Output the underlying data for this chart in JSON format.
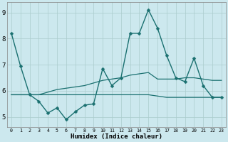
{
  "xlabel": "Humidex (Indice chaleur)",
  "bg_color": "#cce8ee",
  "grid_color": "#aacccc",
  "line_color": "#1a7070",
  "xlim_min": -0.5,
  "xlim_max": 23.5,
  "ylim_min": 4.6,
  "ylim_max": 9.4,
  "yticks": [
    5,
    6,
    7,
    8,
    9
  ],
  "xticks": [
    0,
    1,
    2,
    3,
    4,
    5,
    6,
    7,
    8,
    9,
    10,
    11,
    12,
    13,
    14,
    15,
    16,
    17,
    18,
    19,
    20,
    21,
    22,
    23
  ],
  "series": [
    {
      "x": [
        0,
        1,
        2,
        3,
        4,
        5,
        6,
        7,
        8,
        9,
        10,
        11,
        12,
        13,
        14,
        15,
        16,
        17,
        18,
        19,
        20,
        21,
        22,
        23
      ],
      "y": [
        8.2,
        6.95,
        5.85,
        5.6,
        5.15,
        5.35,
        4.9,
        5.2,
        5.45,
        5.5,
        6.85,
        6.2,
        6.5,
        8.2,
        8.2,
        9.1,
        8.4,
        7.35,
        6.5,
        6.35,
        7.25,
        6.2,
        5.75,
        5.75
      ],
      "marker": true,
      "markersize": 2.5,
      "linewidth": 1.0
    },
    {
      "x": [
        0,
        1,
        2,
        3,
        4,
        5,
        6,
        7,
        8,
        9,
        10,
        11,
        12,
        13,
        14,
        15,
        16,
        17,
        18,
        19,
        20,
        21,
        22,
        23
      ],
      "y": [
        5.85,
        5.85,
        5.85,
        5.85,
        5.95,
        6.05,
        6.1,
        6.15,
        6.2,
        6.3,
        6.4,
        6.45,
        6.5,
        6.6,
        6.65,
        6.7,
        6.45,
        6.45,
        6.45,
        6.5,
        6.5,
        6.45,
        6.4,
        6.4
      ],
      "marker": false,
      "linewidth": 0.9
    },
    {
      "x": [
        0,
        1,
        2,
        3,
        4,
        5,
        6,
        7,
        8,
        9,
        10,
        11,
        12,
        13,
        14,
        15,
        16,
        17,
        18,
        19,
        20,
        21,
        22,
        23
      ],
      "y": [
        5.85,
        5.85,
        5.85,
        5.85,
        5.85,
        5.85,
        5.85,
        5.85,
        5.85,
        5.85,
        5.85,
        5.85,
        5.85,
        5.85,
        5.85,
        5.85,
        5.8,
        5.75,
        5.75,
        5.75,
        5.75,
        5.75,
        5.75,
        5.75
      ],
      "marker": false,
      "linewidth": 0.9
    }
  ]
}
